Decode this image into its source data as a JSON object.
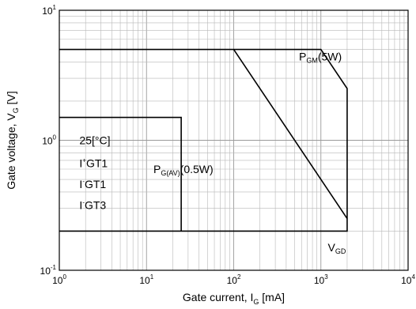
{
  "chart_data": {
    "type": "line",
    "xlabel": {
      "text": "Gate current, I",
      "sub": "G",
      "unit": " [mA]"
    },
    "ylabel": {
      "text": "Gate voltage, V",
      "sub": "G",
      "unit": " [V]"
    },
    "xscale": "log",
    "yscale": "log",
    "xlim": [
      1,
      10000
    ],
    "ylim": [
      0.1,
      10
    ],
    "grid": true,
    "x_ticks": [
      {
        "value": 1,
        "base": "10",
        "exp": "0"
      },
      {
        "value": 10,
        "base": "10",
        "exp": "1"
      },
      {
        "value": 100,
        "base": "10",
        "exp": "2"
      },
      {
        "value": 1000,
        "base": "10",
        "exp": "3"
      },
      {
        "value": 10000,
        "base": "10",
        "exp": "4"
      }
    ],
    "y_ticks": [
      {
        "value": 0.1,
        "base": "10",
        "exp": "-1"
      },
      {
        "value": 1,
        "base": "10",
        "exp": "0"
      },
      {
        "value": 10,
        "base": "10",
        "exp": "1"
      }
    ],
    "series": [
      {
        "points": [
          [
            1,
            5
          ],
          [
            100,
            5
          ],
          [
            1000,
            5
          ],
          [
            2000,
            2.5
          ],
          [
            2000,
            0.2
          ],
          [
            1,
            0.2
          ]
        ]
      },
      {
        "points": [
          [
            100,
            5
          ],
          [
            2000,
            0.25
          ]
        ]
      },
      {
        "points": [
          [
            1,
            1.5
          ],
          [
            25,
            1.5
          ],
          [
            25,
            0.2
          ]
        ]
      }
    ],
    "annotations": {
      "pgm": {
        "main": "P",
        "sub": "GM",
        "rest": "(5W)",
        "x": 560,
        "y": 4.1
      },
      "pgav": {
        "main": "P",
        "sub": "G(AV)",
        "rest": "(0.5W)",
        "x": 12,
        "y": 0.56
      },
      "vgd": {
        "main": "V",
        "sub": "GD",
        "x": 1200,
        "y": 0.14
      },
      "legend_lines": [
        {
          "text": "25[°C]",
          "x": 1.7,
          "y": 0.93
        },
        {
          "text": "I+GT1",
          "pre": "I",
          "sup": "+",
          "post": "GT1",
          "x": 1.7,
          "y": 0.62
        },
        {
          "text": "I-GT1",
          "pre": "I",
          "sup": "-",
          "post": "GT1",
          "x": 1.7,
          "y": 0.43
        },
        {
          "text": "I-GT3",
          "pre": "I",
          "sup": "-",
          "post": "GT3",
          "x": 1.7,
          "y": 0.295
        }
      ]
    }
  }
}
